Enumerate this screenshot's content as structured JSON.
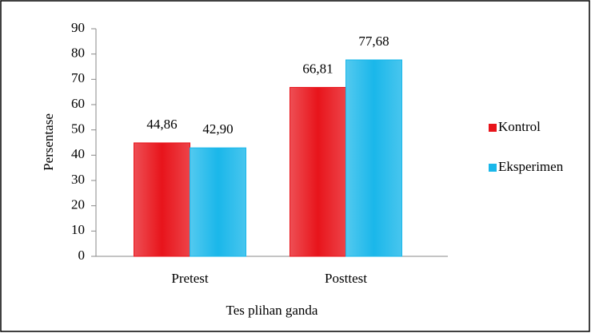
{
  "chart_data": {
    "type": "bar",
    "categories": [
      "Pretest",
      "Posttest"
    ],
    "series": [
      {
        "name": "Kontrol",
        "color": "#e8141b",
        "values": [
          44.86,
          66.81
        ],
        "value_labels": [
          "44,86",
          "66,81"
        ]
      },
      {
        "name": "Eksperimen",
        "color": "#1ab7ea",
        "values": [
          42.9,
          77.68
        ],
        "value_labels": [
          "42,90",
          "77,68"
        ]
      }
    ],
    "ylabel": "Persentase",
    "xlabel": "Tes plihan ganda",
    "ylim": [
      0,
      90
    ],
    "yticks": [
      0,
      10,
      20,
      30,
      40,
      50,
      60,
      70,
      80,
      90
    ],
    "legend": "right"
  }
}
